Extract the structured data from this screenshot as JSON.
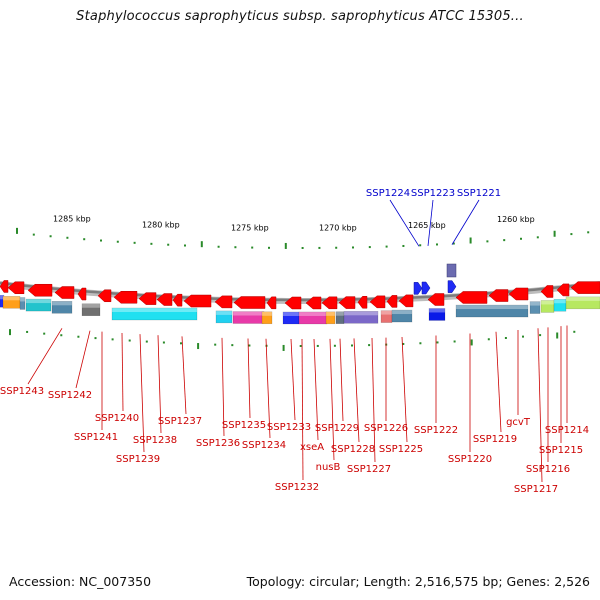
{
  "title": "Staphylococcus saprophyticus subsp. saprophyticus ATCC 15305...",
  "footer": {
    "accession": "Accession: NC_007350",
    "stats": "Topology: circular; Length: 2,516,575 bp; Genes: 2,526"
  },
  "colors": {
    "backbone": "#888888",
    "forward_gene": "#1a1aee",
    "reverse_gene": "#ee0000",
    "tick": "#2a8a2a",
    "label_forward": "#0000cc",
    "label_reverse": "#cc0000"
  },
  "kbp_labels": [
    "1285 kbp",
    "1280 kbp",
    "1275 kbp",
    "1270 kbp",
    "1265 kbp",
    "1260 kbp"
  ],
  "forward_labels": [
    "SSP1224",
    "SSP1223",
    "SSP1221"
  ],
  "reverse_labels": [
    "SSP1243",
    "SSP1242",
    "SSP1241",
    "SSP1240",
    "SSP1239",
    "SSP1238",
    "SSP1237",
    "SSP1236",
    "SSP1235",
    "SSP1234",
    "SSP1233",
    "SSP1232",
    "xseA",
    "nusB",
    "SSP1229",
    "SSP1228",
    "SSP1227",
    "SSP1226",
    "SSP1225",
    "SSP1222",
    "SSP1220",
    "SSP1219",
    "gcvT",
    "SSP1217",
    "SSP1216",
    "SSP1215",
    "SSP1214"
  ]
}
